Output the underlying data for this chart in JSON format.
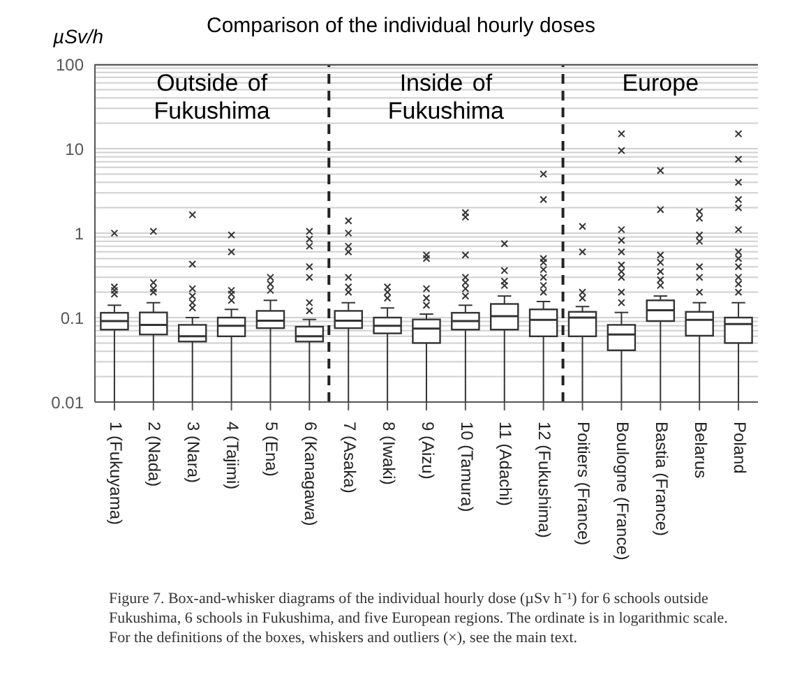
{
  "chart_data": {
    "type": "box",
    "title": "Comparison of the individual hourly doses",
    "ylabel": "µSv/h",
    "color": "#333333",
    "categories": [
      "1 (Fukuyama)",
      "2 (Nada)",
      "3 (Nara)",
      "4 (Tajimi)",
      "5 (Ena)",
      "6 (Kanagawa)",
      "7 (Asaka)",
      "8 (Iwaki)",
      "9 (Aizu)",
      "10 (Tamura)",
      "11 (Adachi)",
      "12 (Fukushima)",
      "Poitiers (France)",
      "Boulogne (France)",
      "Bastia (France)",
      "Belarus",
      "Poland"
    ],
    "boxes": [
      {
        "low": 0.01,
        "q1": 0.072,
        "median": 0.091,
        "q3": 0.114,
        "high": 0.14,
        "outliers": [
          0.19,
          0.21,
          0.23,
          1.0
        ]
      },
      {
        "low": 0.01,
        "q1": 0.063,
        "median": 0.082,
        "q3": 0.115,
        "high": 0.15,
        "outliers": [
          0.2,
          0.22,
          0.26,
          1.05
        ]
      },
      {
        "low": 0.01,
        "q1": 0.052,
        "median": 0.06,
        "q3": 0.082,
        "high": 0.1,
        "outliers": [
          0.13,
          0.15,
          0.18,
          0.22,
          0.43,
          1.65
        ]
      },
      {
        "low": 0.01,
        "q1": 0.06,
        "median": 0.08,
        "q3": 0.1,
        "high": 0.125,
        "outliers": [
          0.16,
          0.19,
          0.21,
          0.6,
          0.95
        ]
      },
      {
        "low": 0.01,
        "q1": 0.075,
        "median": 0.092,
        "q3": 0.12,
        "high": 0.16,
        "outliers": [
          0.21,
          0.25,
          0.3
        ]
      },
      {
        "low": 0.01,
        "q1": 0.052,
        "median": 0.06,
        "q3": 0.078,
        "high": 0.095,
        "outliers": [
          0.12,
          0.15,
          0.3,
          0.4,
          0.7,
          0.85,
          1.05
        ]
      },
      {
        "low": 0.01,
        "q1": 0.075,
        "median": 0.092,
        "q3": 0.12,
        "high": 0.15,
        "outliers": [
          0.2,
          0.23,
          0.3,
          0.6,
          0.7,
          1.0,
          1.4
        ]
      },
      {
        "low": 0.01,
        "q1": 0.065,
        "median": 0.08,
        "q3": 0.1,
        "high": 0.13,
        "outliers": [
          0.17,
          0.2,
          0.23
        ]
      },
      {
        "low": 0.01,
        "q1": 0.05,
        "median": 0.074,
        "q3": 0.095,
        "high": 0.11,
        "outliers": [
          0.14,
          0.17,
          0.22,
          0.5,
          0.55
        ]
      },
      {
        "low": 0.01,
        "q1": 0.072,
        "median": 0.091,
        "q3": 0.114,
        "high": 0.14,
        "outliers": [
          0.18,
          0.22,
          0.26,
          0.3,
          0.55,
          1.55,
          1.75
        ]
      },
      {
        "low": 0.01,
        "q1": 0.072,
        "median": 0.104,
        "q3": 0.145,
        "high": 0.18,
        "outliers": [
          0.24,
          0.27,
          0.36,
          0.75
        ]
      },
      {
        "low": 0.01,
        "q1": 0.06,
        "median": 0.094,
        "q3": 0.125,
        "high": 0.155,
        "outliers": [
          0.2,
          0.24,
          0.3,
          0.37,
          0.45,
          0.5,
          2.5,
          5.0
        ]
      },
      {
        "low": 0.01,
        "q1": 0.06,
        "median": 0.1,
        "q3": 0.117,
        "high": 0.135,
        "outliers": [
          0.17,
          0.2,
          0.6,
          1.2
        ]
      },
      {
        "low": 0.01,
        "q1": 0.041,
        "median": 0.063,
        "q3": 0.082,
        "high": 0.115,
        "outliers": [
          0.15,
          0.2,
          0.3,
          0.35,
          0.42,
          0.6,
          0.82,
          1.1,
          9.5,
          15
        ]
      },
      {
        "low": 0.01,
        "q1": 0.091,
        "median": 0.122,
        "q3": 0.16,
        "high": 0.18,
        "outliers": [
          0.24,
          0.28,
          0.35,
          0.45,
          0.55,
          1.9,
          5.5
        ]
      },
      {
        "low": 0.01,
        "q1": 0.061,
        "median": 0.094,
        "q3": 0.117,
        "high": 0.15,
        "outliers": [
          0.2,
          0.3,
          0.4,
          0.8,
          0.95,
          1.5,
          1.8
        ]
      },
      {
        "low": 0.01,
        "q1": 0.05,
        "median": 0.084,
        "q3": 0.1,
        "high": 0.15,
        "outliers": [
          0.2,
          0.25,
          0.3,
          0.4,
          0.5,
          0.6,
          1.1,
          2.0,
          2.5,
          4.0,
          7.5,
          15
        ]
      }
    ],
    "log": true,
    "ylim": [
      0.01,
      100
    ],
    "yticks": [
      0.01,
      {
        "value": 0.02,
        "label": null
      },
      {
        "value": 0.03,
        "label": null
      },
      {
        "value": 0.04,
        "label": null
      },
      {
        "value": 0.05,
        "label": null
      },
      {
        "value": 0.06,
        "label": null
      },
      {
        "value": 0.07,
        "label": null
      },
      {
        "value": 0.08,
        "label": null
      },
      {
        "value": 0.09,
        "label": null
      },
      0.1,
      {
        "value": 0.2,
        "label": null
      },
      {
        "value": 0.3,
        "label": null
      },
      {
        "value": 0.4,
        "label": null
      },
      {
        "value": 0.5,
        "label": null
      },
      {
        "value": 0.6,
        "label": null
      },
      {
        "value": 0.7,
        "label": null
      },
      {
        "value": 0.8,
        "label": null
      },
      {
        "value": 0.9,
        "label": null
      },
      1,
      {
        "value": 2,
        "label": null
      },
      {
        "value": 3,
        "label": null
      },
      {
        "value": 4,
        "label": null
      },
      {
        "value": 5,
        "label": null
      },
      {
        "value": 6,
        "label": null
      },
      {
        "value": 7,
        "label": null
      },
      {
        "value": 8,
        "label": null
      },
      {
        "value": 9,
        "label": null
      },
      10,
      {
        "value": 20,
        "label": null
      },
      {
        "value": 30,
        "label": null
      },
      {
        "value": 40,
        "label": null
      },
      {
        "value": 50,
        "label": null
      },
      {
        "value": 60,
        "label": null
      },
      {
        "value": 70,
        "label": null
      },
      {
        "value": 80,
        "label": null
      },
      {
        "value": 90,
        "label": null
      },
      100
    ],
    "grid": "y",
    "annotations": [
      "Outside of Fukushima",
      "Inside of Fukushima",
      "Europe",
      "Figure 7. Box-and-whisker diagrams of the individual hourly dose (µSv h⁻¹) for 6 schools outside Fukushima, 6 schools in Fukushima, and five European regions. The ordinate is in logarithmic scale. For the definitions of the boxes, whiskers and outliers (×), see the main text."
    ]
  }
}
